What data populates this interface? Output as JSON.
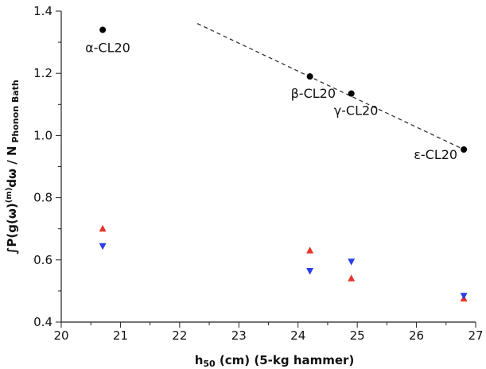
{
  "chart_data": {
    "type": "scatter",
    "title": "",
    "xlabel": {
      "main": "h",
      "sub": "50",
      "rest": " (cm) (5-kg hammer)"
    },
    "ylabel": {
      "main": "∫P(g(ω)",
      "sup": "(m)",
      "mid": "dω / N",
      "sub": " Phonon Bath"
    },
    "xlim": [
      20,
      27
    ],
    "ylim": [
      0.4,
      1.4
    ],
    "xticks": [
      "20",
      "21",
      "22",
      "23",
      "24",
      "25",
      "26",
      "27"
    ],
    "yticks": [
      "0.4",
      "0.6",
      "0.8",
      "1.0",
      "1.2",
      "1.4"
    ],
    "grid": false,
    "series": [
      {
        "marker": "circle",
        "color": "#000000",
        "points": [
          {
            "x": 20.7,
            "y": 1.34,
            "label": "α-CL20"
          },
          {
            "x": 24.2,
            "y": 1.19,
            "label": "β-CL20"
          },
          {
            "x": 24.9,
            "y": 1.135,
            "label": "γ-CL20"
          },
          {
            "x": 26.8,
            "y": 0.955,
            "label": "ε-CL20"
          }
        ]
      },
      {
        "marker": "triangle-up",
        "color": "#e8332a",
        "points": [
          {
            "x": 20.7,
            "y": 0.7
          },
          {
            "x": 24.2,
            "y": 0.63
          },
          {
            "x": 24.9,
            "y": 0.54
          },
          {
            "x": 26.8,
            "y": 0.475
          }
        ]
      },
      {
        "marker": "triangle-down",
        "color": "#2a3fe8",
        "points": [
          {
            "x": 20.7,
            "y": 0.645
          },
          {
            "x": 24.2,
            "y": 0.565
          },
          {
            "x": 24.9,
            "y": 0.595
          },
          {
            "x": 26.8,
            "y": 0.485
          }
        ]
      }
    ],
    "trendline": {
      "x": [
        22.3,
        26.8
      ],
      "y": [
        1.36,
        0.955
      ],
      "style": "dashed",
      "color": "#333333"
    }
  }
}
